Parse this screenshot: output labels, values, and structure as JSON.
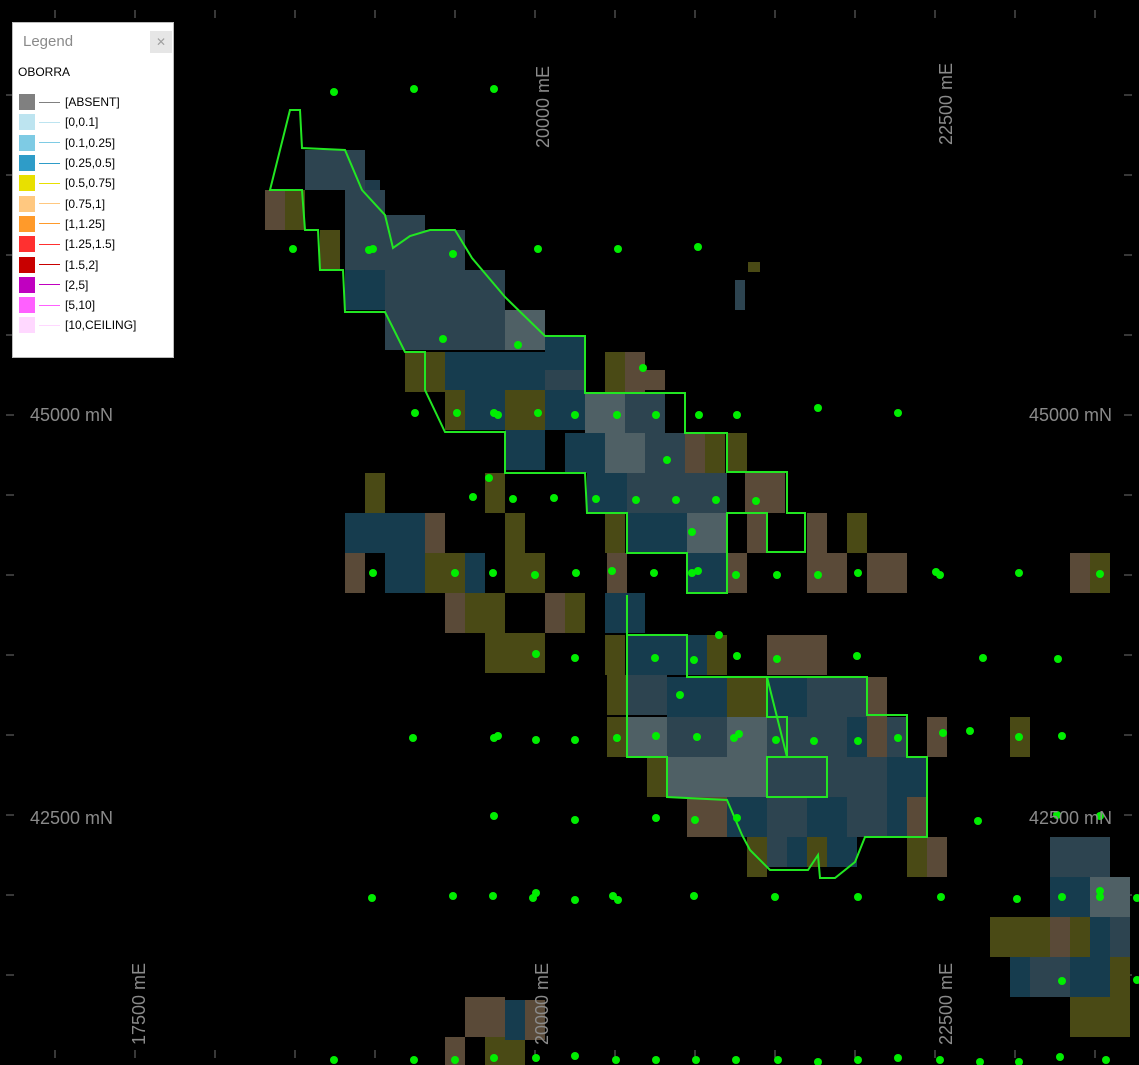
{
  "map": {
    "axis_labels": {
      "top_x": [
        "20000 mE",
        "22500 mE"
      ],
      "bottom_x": [
        "17500 mE",
        "20000 mE",
        "22500 mE"
      ],
      "left_y": [
        "45000 mN",
        "42500 mN"
      ],
      "right_y": [
        "45000 mN",
        "42500 mN"
      ]
    },
    "boundary_color": "#22e622",
    "drillhole_color": "#00ee00",
    "block_colors": [
      "#2d4450",
      "#163c4e",
      "#4f6065",
      "#4a4a15",
      "#5a4a38",
      "#1e3a4a"
    ]
  },
  "legend": {
    "title": "Legend",
    "close_icon": "close-icon",
    "layer_name": "OBORRA",
    "items": [
      {
        "label": "[ABSENT]",
        "color": "#808080"
      },
      {
        "label": "[0,0.1]",
        "color": "#bde4f0"
      },
      {
        "label": "[0.1,0.25]",
        "color": "#7ecbe4"
      },
      {
        "label": "[0.25,0.5]",
        "color": "#2e9cc8"
      },
      {
        "label": "[0.5,0.75]",
        "color": "#e8e000"
      },
      {
        "label": "[0.75,1]",
        "color": "#ffc880"
      },
      {
        "label": "[1,1.25]",
        "color": "#ff9a2a"
      },
      {
        "label": "[1.25,1.5]",
        "color": "#ff3030"
      },
      {
        "label": "[1.5,2]",
        "color": "#c80000"
      },
      {
        "label": "[2,5]",
        "color": "#c000c0"
      },
      {
        "label": "[5,10]",
        "color": "#ff60ff"
      },
      {
        "label": "[10,CEILING]",
        "color": "#ffd8ff"
      }
    ]
  }
}
